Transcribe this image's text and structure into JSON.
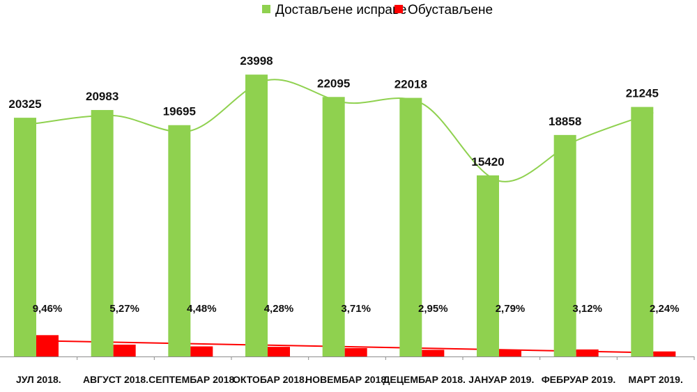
{
  "chart_data": {
    "type": "bar",
    "categories": [
      "ЈУЛ 2018.",
      "АВГУСТ 2018.",
      "СЕПТЕМБАР 2018.",
      "ОКТОБАР 2018.",
      "НОВЕМБАР 2018.",
      "ДЕЦЕМБАР 2018.",
      "ЈАНУАР 2019.",
      "ФЕБРУАР 2019.",
      "МАРТ 2019."
    ],
    "series": [
      {
        "name": "Достављене исправе",
        "color": "#8fd14f",
        "values": [
          20325,
          20983,
          19695,
          23998,
          22095,
          22018,
          15420,
          18858,
          21245
        ],
        "labels": [
          "20325",
          "20983",
          "19695",
          "23998",
          "22095",
          "22018",
          "15420",
          "18858",
          "21245"
        ]
      },
      {
        "name": "Обустављене",
        "color": "#ff0000",
        "values": [
          9.46,
          5.27,
          4.48,
          4.28,
          3.71,
          2.95,
          2.79,
          3.12,
          2.24
        ],
        "labels": [
          "9,46%",
          "5,27%",
          "4,48%",
          "4,28%",
          "3,71%",
          "2,95%",
          "2,79%",
          "3,12%",
          "2,24%"
        ]
      }
    ],
    "trendlines": [
      {
        "series": "Достављене исправе",
        "kind": "polynomial",
        "color": "#8fd14f"
      },
      {
        "series": "Обустављене",
        "kind": "linear",
        "color": "#ff0000"
      }
    ],
    "legend_position": "top-right",
    "grid": false
  }
}
